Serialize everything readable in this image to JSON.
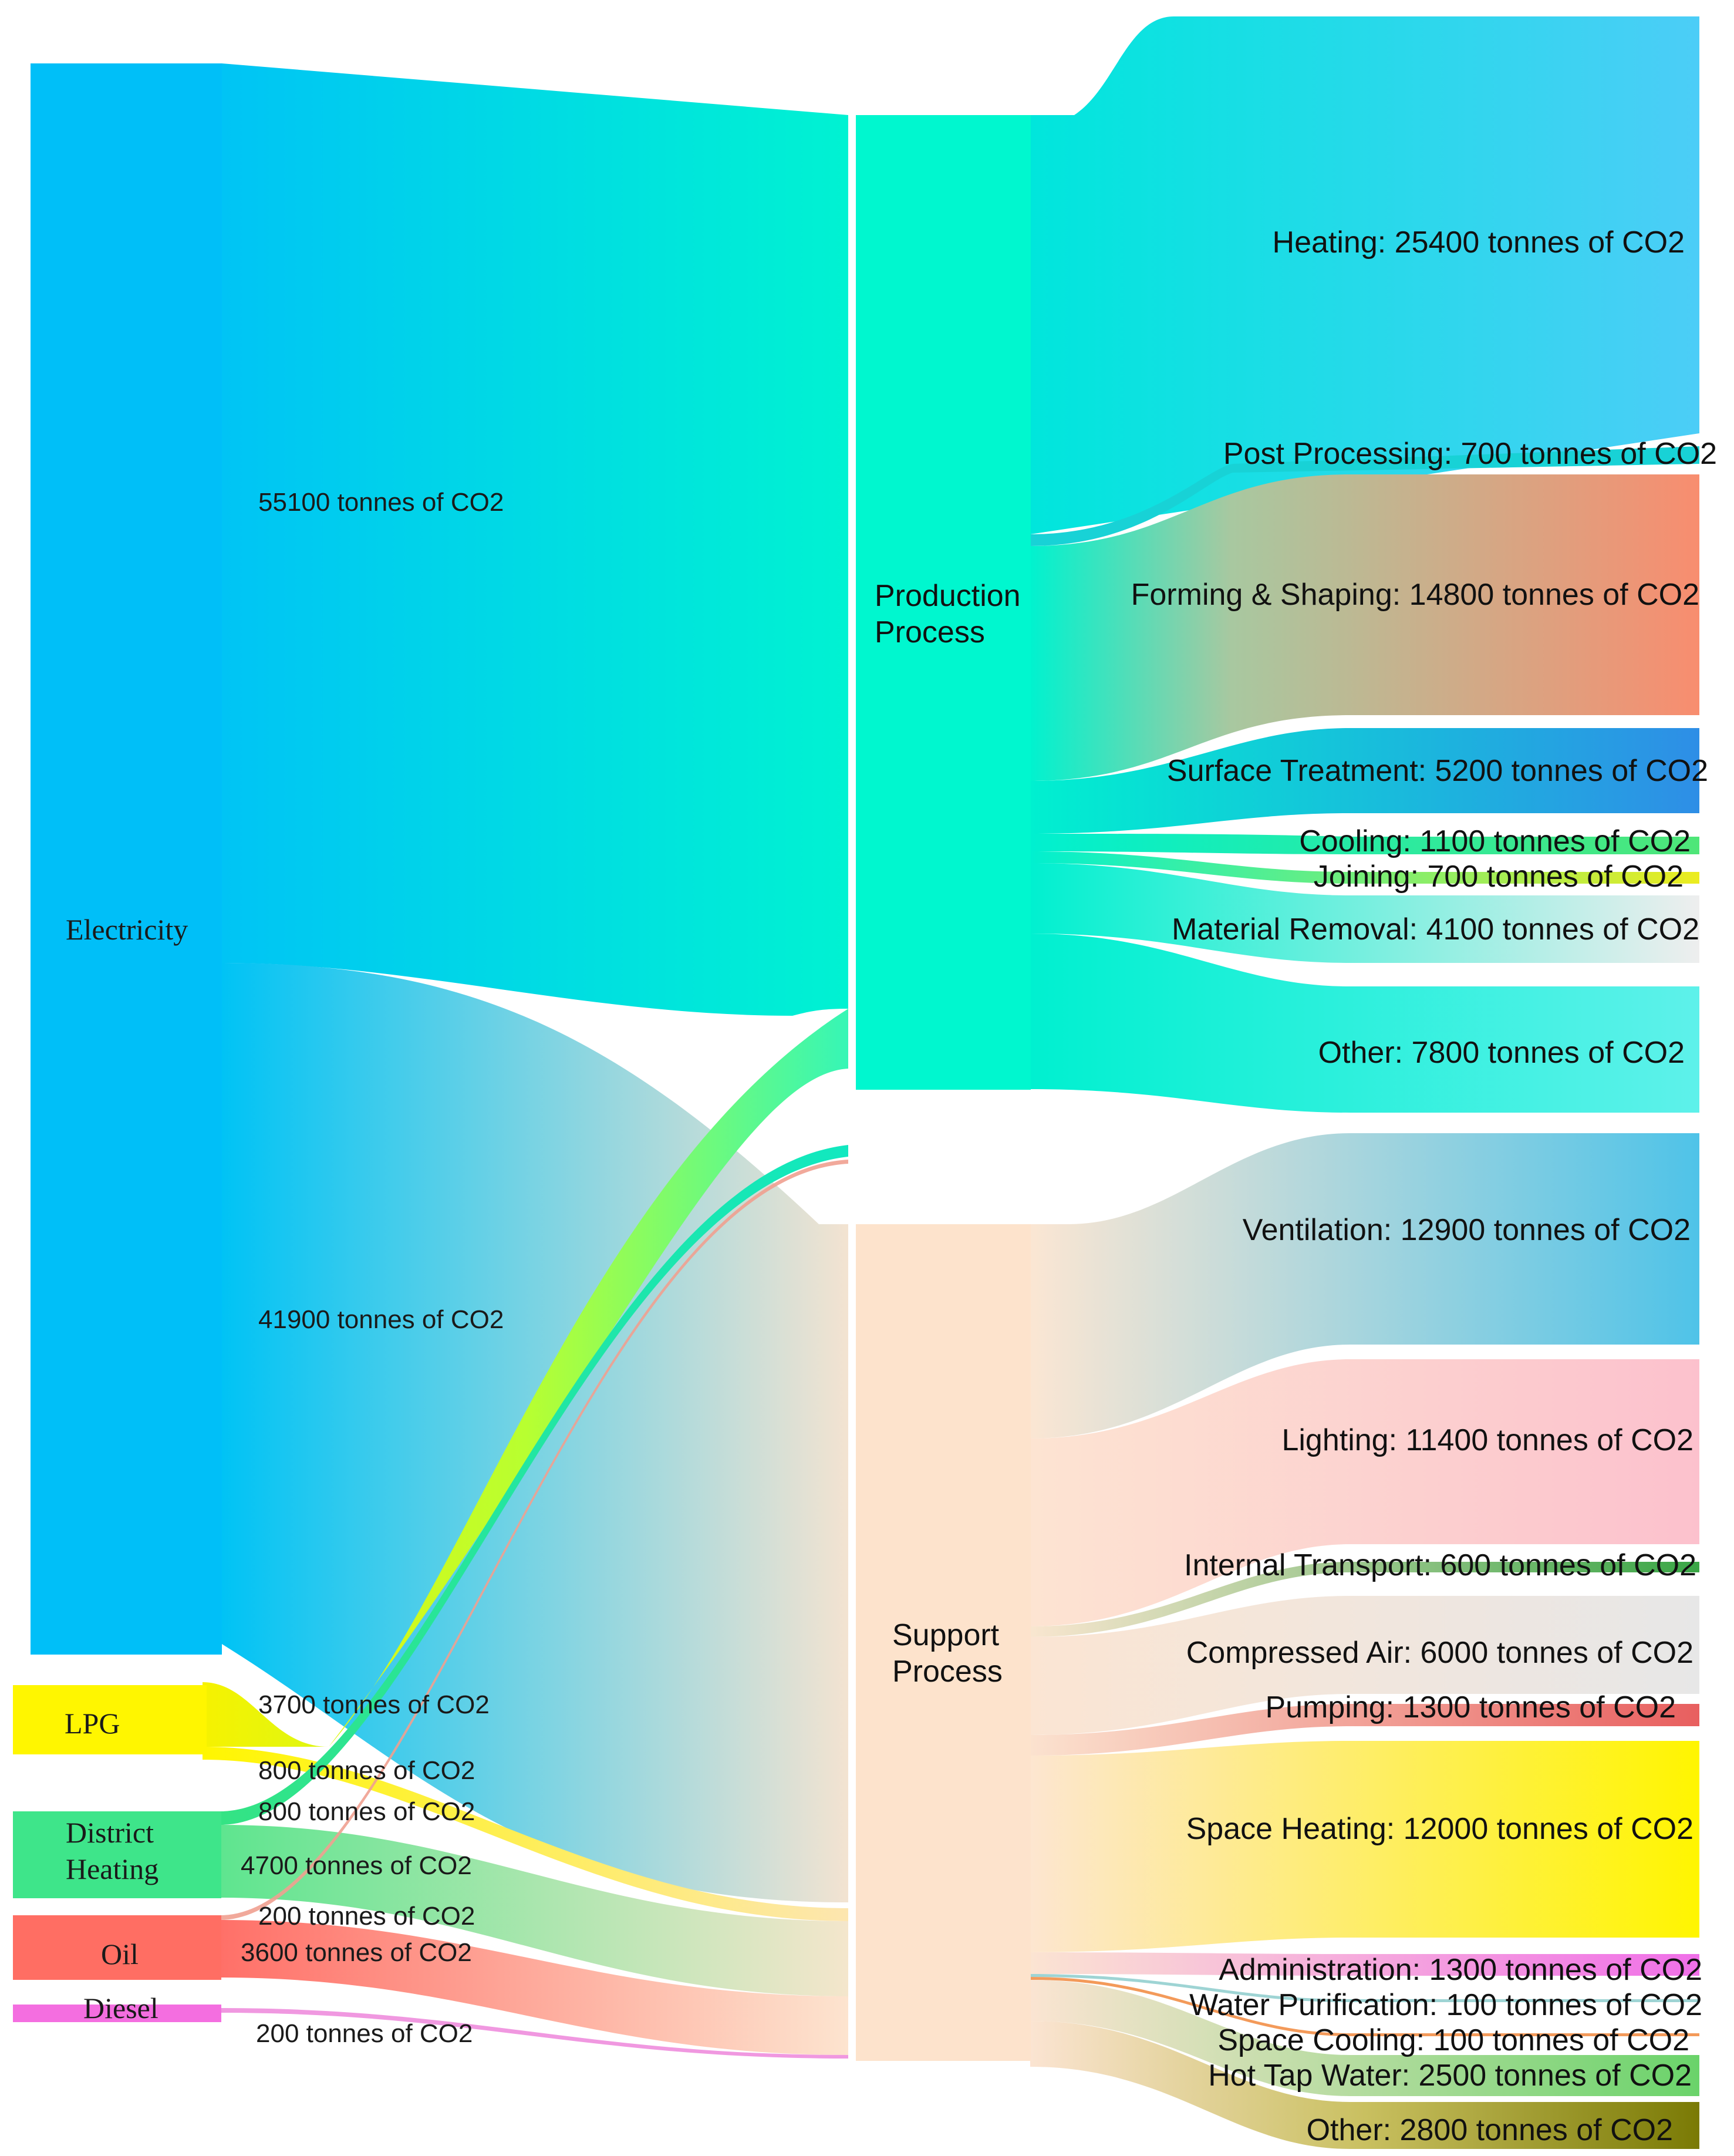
{
  "colors": {
    "electricity": "#00bff8",
    "lpg": "#fff600",
    "district_heating": "#3ee58a",
    "oil": "#ff6e63",
    "diesel": "#f46ee0",
    "production": "#00f7cf",
    "support": "#fde3cc",
    "heating": "#4ccdf7",
    "post_processing": "#17d0d5",
    "forming": "#f69171",
    "surface": "#2e8fe6",
    "cooling": "#4fe678",
    "joining": "#ecec1f",
    "material": "#e5e5e5",
    "other_prod": "#55f0ea",
    "ventilation": "#53c3e6",
    "lighting": "#fcc4cf",
    "internal": "#3aa646",
    "compressed": "#e5e5e5",
    "pumping": "#ea6363",
    "space_heating": "#fff500",
    "administration": "#f06fe8",
    "water_pur": "#8fd1d1",
    "space_cooling": "#f38a4a",
    "hot_tap": "#6ad36a",
    "other_sup": "#7a7a05"
  },
  "sources": {
    "electricity": "Electricity",
    "lpg": "LPG",
    "district_line1": "District",
    "district_line2": "Heating",
    "oil": "Oil",
    "diesel": "Diesel"
  },
  "processes": {
    "production_line1": "Production",
    "production_line2": "Process",
    "support_line1": "Support",
    "support_line2": "Process"
  },
  "flow_labels": {
    "elec_prod": "55100 tonnes of CO2",
    "elec_sup": "41900 tonnes of CO2",
    "lpg_prod": "3700 tonnes of CO2",
    "lpg_sup": "800 tonnes of CO2",
    "dh_prod": "800 tonnes of CO2",
    "dh_sup": "4700 tonnes of CO2",
    "oil_prod": "200 tonnes of CO2",
    "oil_sup": "3600 tonnes of CO2",
    "diesel_sup": "200 tonnes of CO2"
  },
  "outputs": {
    "heating": "Heating: 25400 tonnes of CO2",
    "post_processing": "Post Processing: 700 tonnes of CO2",
    "forming": "Forming & Shaping: 14800 tonnes of CO2",
    "surface": "Surface Treatment: 5200 tonnes of CO2",
    "cooling": "Cooling: 1100 tonnes of CO2",
    "joining": "Joining: 700 tonnes of CO2",
    "material": "Material Removal: 4100 tonnes of CO2",
    "other_prod": "Other: 7800 tonnes of CO2",
    "ventilation": "Ventilation: 12900 tonnes of CO2",
    "lighting": "Lighting: 11400 tonnes of CO2",
    "internal": "Internal Transport: 600 tonnes of CO2",
    "compressed": "Compressed Air: 6000 tonnes of CO2",
    "pumping": "Pumping: 1300 tonnes of CO2",
    "space_heating": "Space Heating: 12000 tonnes of CO2",
    "administration": "Administration: 1300 tonnes of CO2",
    "water_pur": "Water Purification: 100 tonnes of CO2",
    "space_cooling": "Space Cooling: 100 tonnes of CO2",
    "hot_tap": "Hot Tap Water: 2500 tonnes of CO2",
    "other_sup": "Other: 2800 tonnes of CO2"
  }
}
